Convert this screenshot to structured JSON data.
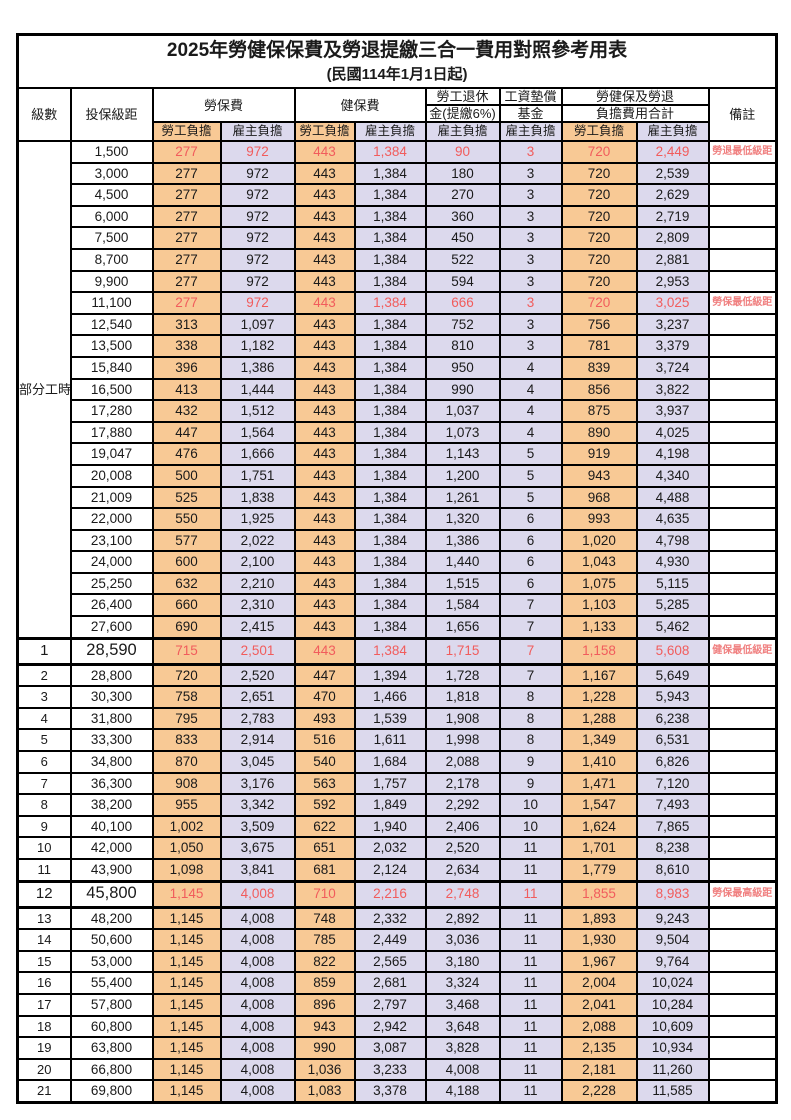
{
  "title": "2025年勞健保保費及勞退提繳三合一費用對照參考用表",
  "subtitle": "(民國114年1月1日起)",
  "header": {
    "level": "級數",
    "bracket": "投保級距",
    "labor_ins": "勞保費",
    "health_ins": "健保費",
    "pension_line1": "勞工退休",
    "pension_line2": "金(提繳6%)",
    "wage_fund_line1": "工資墊償",
    "wage_fund_line2": "基金",
    "total_line1": "勞健保及勞退",
    "total_line2": "負擔費用合計",
    "remark": "備註",
    "employee": "勞工負擔",
    "employer": "雇主負擔"
  },
  "part_time_label": "部分工時",
  "colors": {
    "employee_bg": "#F8C995",
    "employer_bg": "#DCD9ED",
    "value_red": "#F15C5C",
    "note_red": "#F08080",
    "border": "#000000"
  },
  "notes_legend": [
    "勞退最低級距",
    "勞保最低級距",
    "健保最低級距",
    "勞保最高級距"
  ],
  "rows": [
    {
      "level": "部分工時",
      "rowspan": 23,
      "bracket": "1,500",
      "v": [
        "277",
        "972",
        "443",
        "1,384",
        "90",
        "3",
        "720",
        "2,449"
      ],
      "note": "勞退最低級距",
      "red": true
    },
    {
      "bracket": "3,000",
      "v": [
        "277",
        "972",
        "443",
        "1,384",
        "180",
        "3",
        "720",
        "2,539"
      ]
    },
    {
      "bracket": "4,500",
      "v": [
        "277",
        "972",
        "443",
        "1,384",
        "270",
        "3",
        "720",
        "2,629"
      ]
    },
    {
      "bracket": "6,000",
      "v": [
        "277",
        "972",
        "443",
        "1,384",
        "360",
        "3",
        "720",
        "2,719"
      ]
    },
    {
      "bracket": "7,500",
      "v": [
        "277",
        "972",
        "443",
        "1,384",
        "450",
        "3",
        "720",
        "2,809"
      ]
    },
    {
      "bracket": "8,700",
      "v": [
        "277",
        "972",
        "443",
        "1,384",
        "522",
        "3",
        "720",
        "2,881"
      ]
    },
    {
      "bracket": "9,900",
      "v": [
        "277",
        "972",
        "443",
        "1,384",
        "594",
        "3",
        "720",
        "2,953"
      ]
    },
    {
      "bracket": "11,100",
      "v": [
        "277",
        "972",
        "443",
        "1,384",
        "666",
        "3",
        "720",
        "3,025"
      ],
      "note": "勞保最低級距",
      "red": true
    },
    {
      "bracket": "12,540",
      "v": [
        "313",
        "1,097",
        "443",
        "1,384",
        "752",
        "3",
        "756",
        "3,237"
      ]
    },
    {
      "bracket": "13,500",
      "v": [
        "338",
        "1,182",
        "443",
        "1,384",
        "810",
        "3",
        "781",
        "3,379"
      ]
    },
    {
      "bracket": "15,840",
      "v": [
        "396",
        "1,386",
        "443",
        "1,384",
        "950",
        "4",
        "839",
        "3,724"
      ]
    },
    {
      "bracket": "16,500",
      "v": [
        "413",
        "1,444",
        "443",
        "1,384",
        "990",
        "4",
        "856",
        "3,822"
      ]
    },
    {
      "bracket": "17,280",
      "v": [
        "432",
        "1,512",
        "443",
        "1,384",
        "1,037",
        "4",
        "875",
        "3,937"
      ]
    },
    {
      "bracket": "17,880",
      "v": [
        "447",
        "1,564",
        "443",
        "1,384",
        "1,073",
        "4",
        "890",
        "4,025"
      ]
    },
    {
      "bracket": "19,047",
      "v": [
        "476",
        "1,666",
        "443",
        "1,384",
        "1,143",
        "5",
        "919",
        "4,198"
      ]
    },
    {
      "bracket": "20,008",
      "v": [
        "500",
        "1,751",
        "443",
        "1,384",
        "1,200",
        "5",
        "943",
        "4,340"
      ]
    },
    {
      "bracket": "21,009",
      "v": [
        "525",
        "1,838",
        "443",
        "1,384",
        "1,261",
        "5",
        "968",
        "4,488"
      ]
    },
    {
      "bracket": "22,000",
      "v": [
        "550",
        "1,925",
        "443",
        "1,384",
        "1,320",
        "6",
        "993",
        "4,635"
      ]
    },
    {
      "bracket": "23,100",
      "v": [
        "577",
        "2,022",
        "443",
        "1,384",
        "1,386",
        "6",
        "1,020",
        "4,798"
      ]
    },
    {
      "bracket": "24,000",
      "v": [
        "600",
        "2,100",
        "443",
        "1,384",
        "1,440",
        "6",
        "1,043",
        "4,930"
      ]
    },
    {
      "bracket": "25,250",
      "v": [
        "632",
        "2,210",
        "443",
        "1,384",
        "1,515",
        "6",
        "1,075",
        "5,115"
      ]
    },
    {
      "bracket": "26,400",
      "v": [
        "660",
        "2,310",
        "443",
        "1,384",
        "1,584",
        "7",
        "1,103",
        "5,285"
      ]
    },
    {
      "bracket": "27,600",
      "v": [
        "690",
        "2,415",
        "443",
        "1,384",
        "1,656",
        "7",
        "1,133",
        "5,462"
      ]
    },
    {
      "level": "1",
      "bracket": "28,590",
      "v": [
        "715",
        "2,501",
        "443",
        "1,384",
        "1,715",
        "7",
        "1,158",
        "5,608"
      ],
      "note": "健保最低級距",
      "red": true,
      "big": true
    },
    {
      "level": "2",
      "bracket": "28,800",
      "v": [
        "720",
        "2,520",
        "447",
        "1,394",
        "1,728",
        "7",
        "1,167",
        "5,649"
      ]
    },
    {
      "level": "3",
      "bracket": "30,300",
      "v": [
        "758",
        "2,651",
        "470",
        "1,466",
        "1,818",
        "8",
        "1,228",
        "5,943"
      ]
    },
    {
      "level": "4",
      "bracket": "31,800",
      "v": [
        "795",
        "2,783",
        "493",
        "1,539",
        "1,908",
        "8",
        "1,288",
        "6,238"
      ]
    },
    {
      "level": "5",
      "bracket": "33,300",
      "v": [
        "833",
        "2,914",
        "516",
        "1,611",
        "1,998",
        "8",
        "1,349",
        "6,531"
      ]
    },
    {
      "level": "6",
      "bracket": "34,800",
      "v": [
        "870",
        "3,045",
        "540",
        "1,684",
        "2,088",
        "9",
        "1,410",
        "6,826"
      ]
    },
    {
      "level": "7",
      "bracket": "36,300",
      "v": [
        "908",
        "3,176",
        "563",
        "1,757",
        "2,178",
        "9",
        "1,471",
        "7,120"
      ]
    },
    {
      "level": "8",
      "bracket": "38,200",
      "v": [
        "955",
        "3,342",
        "592",
        "1,849",
        "2,292",
        "10",
        "1,547",
        "7,493"
      ]
    },
    {
      "level": "9",
      "bracket": "40,100",
      "v": [
        "1,002",
        "3,509",
        "622",
        "1,940",
        "2,406",
        "10",
        "1,624",
        "7,865"
      ]
    },
    {
      "level": "10",
      "bracket": "42,000",
      "v": [
        "1,050",
        "3,675",
        "651",
        "2,032",
        "2,520",
        "11",
        "1,701",
        "8,238"
      ]
    },
    {
      "level": "11",
      "bracket": "43,900",
      "v": [
        "1,098",
        "3,841",
        "681",
        "2,124",
        "2,634",
        "11",
        "1,779",
        "8,610"
      ]
    },
    {
      "level": "12",
      "bracket": "45,800",
      "v": [
        "1,145",
        "4,008",
        "710",
        "2,216",
        "2,748",
        "11",
        "1,855",
        "8,983"
      ],
      "note": "勞保最高級距",
      "red": true,
      "big": true
    },
    {
      "level": "13",
      "bracket": "48,200",
      "v": [
        "1,145",
        "4,008",
        "748",
        "2,332",
        "2,892",
        "11",
        "1,893",
        "9,243"
      ]
    },
    {
      "level": "14",
      "bracket": "50,600",
      "v": [
        "1,145",
        "4,008",
        "785",
        "2,449",
        "3,036",
        "11",
        "1,930",
        "9,504"
      ]
    },
    {
      "level": "15",
      "bracket": "53,000",
      "v": [
        "1,145",
        "4,008",
        "822",
        "2,565",
        "3,180",
        "11",
        "1,967",
        "9,764"
      ]
    },
    {
      "level": "16",
      "bracket": "55,400",
      "v": [
        "1,145",
        "4,008",
        "859",
        "2,681",
        "3,324",
        "11",
        "2,004",
        "10,024"
      ]
    },
    {
      "level": "17",
      "bracket": "57,800",
      "v": [
        "1,145",
        "4,008",
        "896",
        "2,797",
        "3,468",
        "11",
        "2,041",
        "10,284"
      ]
    },
    {
      "level": "18",
      "bracket": "60,800",
      "v": [
        "1,145",
        "4,008",
        "943",
        "2,942",
        "3,648",
        "11",
        "2,088",
        "10,609"
      ]
    },
    {
      "level": "19",
      "bracket": "63,800",
      "v": [
        "1,145",
        "4,008",
        "990",
        "3,087",
        "3,828",
        "11",
        "2,135",
        "10,934"
      ]
    },
    {
      "level": "20",
      "bracket": "66,800",
      "v": [
        "1,145",
        "4,008",
        "1,036",
        "3,233",
        "4,008",
        "11",
        "2,181",
        "11,260"
      ]
    },
    {
      "level": "21",
      "bracket": "69,800",
      "v": [
        "1,145",
        "4,008",
        "1,083",
        "3,378",
        "4,188",
        "11",
        "2,228",
        "11,585"
      ]
    }
  ]
}
